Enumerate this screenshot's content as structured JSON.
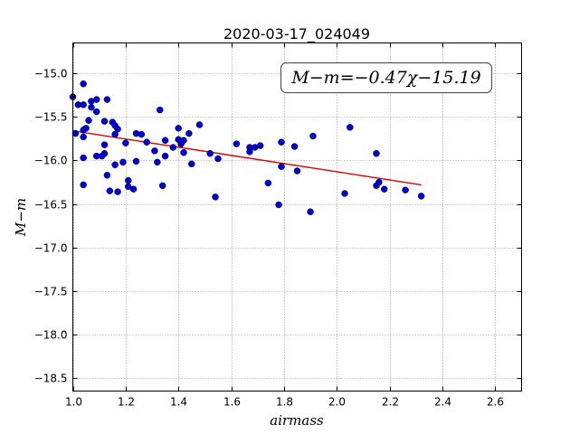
{
  "chart_data": {
    "type": "scatter",
    "title": "2020-03-17_024049",
    "xlabel": "airmass",
    "ylabel": "M−m",
    "xlim": [
      1.0,
      2.7
    ],
    "ylim": [
      -18.65,
      -14.65
    ],
    "y_inverted": true,
    "x_ticks": [
      1.0,
      1.2,
      1.4,
      1.6,
      1.8,
      2.0,
      2.2,
      2.4,
      2.6
    ],
    "x_tick_labels": [
      "1.0",
      "1.2",
      "1.4",
      "1.6",
      "1.8",
      "2.0",
      "2.2",
      "2.4",
      "2.6"
    ],
    "y_ticks": [
      -15.0,
      -15.5,
      -16.0,
      -16.5,
      -17.0,
      -17.5,
      -18.0,
      -18.5
    ],
    "y_tick_labels": [
      "−15.0",
      "−15.5",
      "−16.0",
      "−16.5",
      "−17.0",
      "−17.5",
      "−18.0",
      "−18.5"
    ],
    "grid": true,
    "annotation": "M−m=−0.47χ−15.19",
    "annotation_position": "top-right",
    "point_color": "#0000cc",
    "fit_color": "#dd0000",
    "fit": {
      "slope": -0.47,
      "intercept": -15.19,
      "x_range": [
        1.0,
        2.32
      ]
    },
    "points": [
      [
        1.0,
        -15.27
      ],
      [
        1.01,
        -15.69
      ],
      [
        1.02,
        -15.36
      ],
      [
        1.04,
        -15.36
      ],
      [
        1.04,
        -15.12
      ],
      [
        1.04,
        -15.65
      ],
      [
        1.04,
        -15.73
      ],
      [
        1.05,
        -15.63
      ],
      [
        1.04,
        -15.97
      ],
      [
        1.04,
        -16.28
      ],
      [
        1.06,
        -15.54
      ],
      [
        1.07,
        -15.32
      ],
      [
        1.07,
        -15.39
      ],
      [
        1.09,
        -15.3
      ],
      [
        1.09,
        -15.44
      ],
      [
        1.09,
        -15.95
      ],
      [
        1.11,
        -15.95
      ],
      [
        1.12,
        -15.55
      ],
      [
        1.12,
        -15.82
      ],
      [
        1.12,
        -15.92
      ],
      [
        1.13,
        -15.3
      ],
      [
        1.13,
        -16.17
      ],
      [
        1.14,
        -16.35
      ],
      [
        1.15,
        -15.56
      ],
      [
        1.16,
        -15.6
      ],
      [
        1.16,
        -15.7
      ],
      [
        1.17,
        -15.64
      ],
      [
        1.16,
        -16.05
      ],
      [
        1.17,
        -16.36
      ],
      [
        1.19,
        -16.02
      ],
      [
        1.2,
        -15.8
      ],
      [
        1.21,
        -16.23
      ],
      [
        1.21,
        -16.3
      ],
      [
        1.23,
        -16.33
      ],
      [
        1.24,
        -15.69
      ],
      [
        1.24,
        -16.01
      ],
      [
        1.26,
        -15.7
      ],
      [
        1.28,
        -15.79
      ],
      [
        1.31,
        -15.89
      ],
      [
        1.32,
        -16.02
      ],
      [
        1.33,
        -15.42
      ],
      [
        1.34,
        -16.29
      ],
      [
        1.35,
        -15.77
      ],
      [
        1.35,
        -15.95
      ],
      [
        1.38,
        -15.85
      ],
      [
        1.4,
        -15.63
      ],
      [
        1.4,
        -15.76
      ],
      [
        1.41,
        -15.81
      ],
      [
        1.42,
        -15.91
      ],
      [
        1.42,
        -15.77
      ],
      [
        1.44,
        -15.69
      ],
      [
        1.45,
        -16.04
      ],
      [
        1.48,
        -15.59
      ],
      [
        1.52,
        -15.92
      ],
      [
        1.54,
        -16.42
      ],
      [
        1.55,
        -15.98
      ],
      [
        1.62,
        -15.81
      ],
      [
        1.67,
        -15.85
      ],
      [
        1.67,
        -15.9
      ],
      [
        1.69,
        -15.85
      ],
      [
        1.71,
        -15.83
      ],
      [
        1.74,
        -16.26
      ],
      [
        1.78,
        -16.51
      ],
      [
        1.79,
        -15.79
      ],
      [
        1.79,
        -16.07
      ],
      [
        1.84,
        -15.84
      ],
      [
        1.85,
        -16.12
      ],
      [
        1.9,
        -16.59
      ],
      [
        1.91,
        -15.72
      ],
      [
        2.03,
        -16.38
      ],
      [
        2.05,
        -15.62
      ],
      [
        2.15,
        -15.92
      ],
      [
        2.15,
        -16.29
      ],
      [
        2.16,
        -16.25
      ],
      [
        2.18,
        -16.33
      ],
      [
        2.26,
        -16.34
      ],
      [
        2.32,
        -16.41
      ]
    ]
  }
}
